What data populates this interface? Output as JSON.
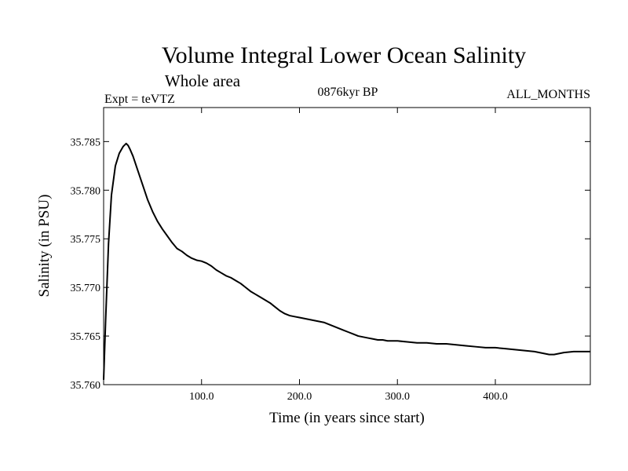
{
  "chart_data": {
    "type": "line",
    "title": "Volume Integral Lower Ocean Salinity",
    "subtitle": "Whole area",
    "left_label": "Expt = teVTZ",
    "center_label": "0876kyr BP",
    "right_label": "ALL_MONTHS",
    "xlabel": "Time (in years since start)",
    "ylabel": "Salinity (in PSU)",
    "xlim": [
      0,
      497
    ],
    "ylim": [
      35.76,
      35.7885
    ],
    "x_ticks": [
      100,
      200,
      300,
      400
    ],
    "x_tick_labels": [
      "100.0",
      "200.0",
      "300.0",
      "400.0"
    ],
    "y_ticks": [
      35.76,
      35.765,
      35.77,
      35.775,
      35.78,
      35.785
    ],
    "y_tick_labels": [
      "35.760",
      "35.765",
      "35.770",
      "35.775",
      "35.780",
      "35.785"
    ],
    "grid": false,
    "series": [
      {
        "name": "salinity",
        "x": [
          0,
          2,
          5,
          8,
          12,
          16,
          20,
          23,
          25,
          27,
          30,
          35,
          40,
          45,
          50,
          55,
          60,
          65,
          70,
          75,
          80,
          85,
          90,
          95,
          100,
          105,
          110,
          115,
          120,
          125,
          130,
          135,
          140,
          145,
          150,
          155,
          160,
          165,
          170,
          175,
          180,
          185,
          190,
          195,
          200,
          205,
          210,
          215,
          220,
          225,
          230,
          235,
          240,
          245,
          250,
          255,
          260,
          265,
          270,
          275,
          280,
          285,
          290,
          295,
          300,
          310,
          320,
          330,
          340,
          350,
          360,
          370,
          380,
          390,
          400,
          410,
          420,
          430,
          440,
          450,
          455,
          460,
          470,
          480,
          490,
          497
        ],
        "y": [
          35.7605,
          35.7665,
          35.7745,
          35.7795,
          35.7825,
          35.7838,
          35.7845,
          35.7848,
          35.7846,
          35.7842,
          35.7835,
          35.782,
          35.7805,
          35.779,
          35.7778,
          35.7768,
          35.776,
          35.7753,
          35.7746,
          35.774,
          35.7737,
          35.7733,
          35.773,
          35.7728,
          35.7727,
          35.7725,
          35.7722,
          35.7718,
          35.7715,
          35.7712,
          35.771,
          35.7707,
          35.7704,
          35.77,
          35.7696,
          35.7693,
          35.769,
          35.7687,
          35.7684,
          35.768,
          35.7676,
          35.7673,
          35.7671,
          35.767,
          35.7669,
          35.7668,
          35.7667,
          35.7666,
          35.7665,
          35.7664,
          35.7662,
          35.766,
          35.7658,
          35.7656,
          35.7654,
          35.7652,
          35.765,
          35.7649,
          35.7648,
          35.7647,
          35.7646,
          35.7646,
          35.7645,
          35.7645,
          35.7645,
          35.7644,
          35.7643,
          35.7643,
          35.7642,
          35.7642,
          35.7641,
          35.764,
          35.7639,
          35.7638,
          35.7638,
          35.7637,
          35.7636,
          35.7635,
          35.7634,
          35.7632,
          35.7631,
          35.7631,
          35.7633,
          35.7634,
          35.7634,
          35.7634
        ]
      }
    ]
  }
}
